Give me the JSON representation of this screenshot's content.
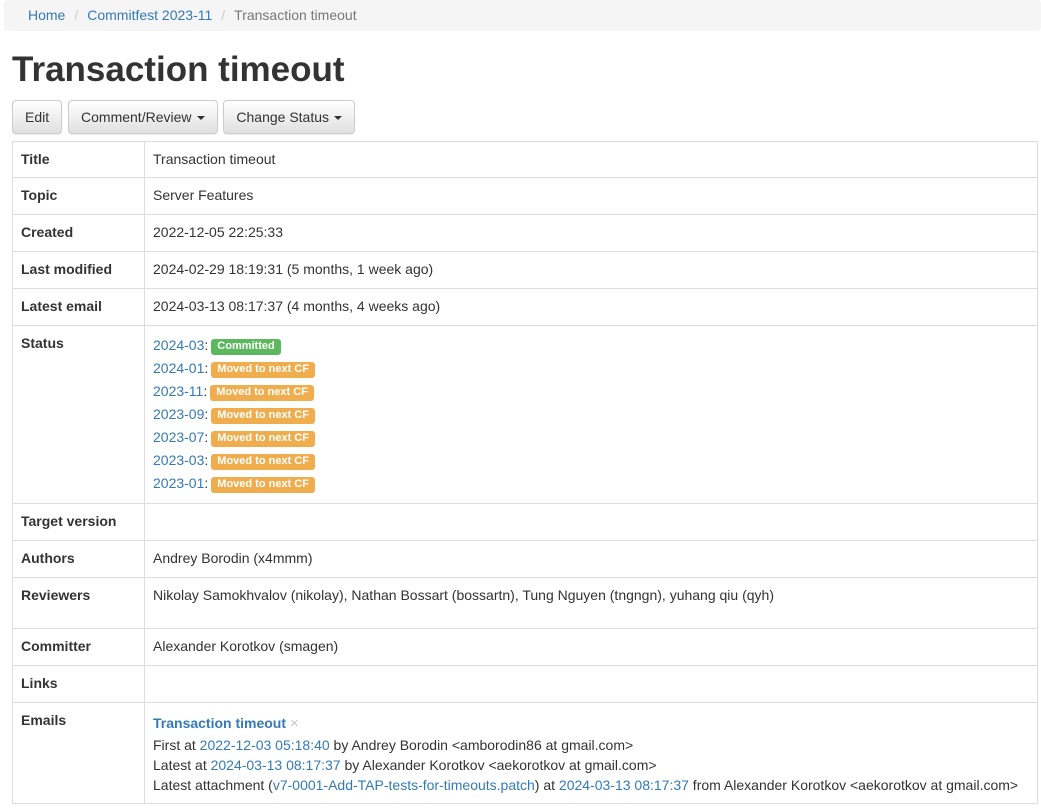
{
  "colors": {
    "success": "#5cb85c",
    "warning": "#f0ad4e",
    "link": "#337ab7",
    "breadcrumb_bg": "#f5f5f5"
  },
  "breadcrumb": {
    "separator": "/",
    "items": [
      {
        "label": "Home"
      },
      {
        "label": "Commitfest 2023-11"
      },
      {
        "label": "Transaction timeout"
      }
    ]
  },
  "page": {
    "title": "Transaction timeout"
  },
  "toolbar": {
    "edit": "Edit",
    "comment_review": "Comment/Review",
    "change_status": "Change Status"
  },
  "rows": {
    "title": {
      "label": "Title",
      "value": "Transaction timeout"
    },
    "topic": {
      "label": "Topic",
      "value": "Server Features"
    },
    "created": {
      "label": "Created",
      "value": "2022-12-05 22:25:33"
    },
    "last_modified": {
      "label": "Last modified",
      "value": "2024-02-29 18:19:31 (5 months, 1 week ago)"
    },
    "latest_email": {
      "label": "Latest email",
      "value": "2024-03-13 08:17:37 (4 months, 4 weeks ago)"
    },
    "status": {
      "label": "Status"
    },
    "target_version": {
      "label": "Target version",
      "value": ""
    },
    "authors": {
      "label": "Authors",
      "value": "Andrey Borodin (x4mmm)"
    },
    "reviewers": {
      "label": "Reviewers",
      "value": "Nikolay Samokhvalov (nikolay), Nathan Bossart (bossartn), Tung Nguyen (tngngn), yuhang qiu (qyh)"
    },
    "committer": {
      "label": "Committer",
      "value": "Alexander Korotkov (smagen)"
    },
    "links": {
      "label": "Links",
      "value": ""
    },
    "emails": {
      "label": "Emails"
    }
  },
  "status": {
    "colon": ":",
    "entries": [
      {
        "cf": "2024-03",
        "badge": "Committed",
        "type": "success"
      },
      {
        "cf": "2024-01",
        "badge": "Moved to next CF",
        "type": "warning"
      },
      {
        "cf": "2023-11",
        "badge": "Moved to next CF",
        "type": "warning"
      },
      {
        "cf": "2023-09",
        "badge": "Moved to next CF",
        "type": "warning"
      },
      {
        "cf": "2023-07",
        "badge": "Moved to next CF",
        "type": "warning"
      },
      {
        "cf": "2023-03",
        "badge": "Moved to next CF",
        "type": "warning"
      },
      {
        "cf": "2023-01",
        "badge": "Moved to next CF",
        "type": "warning"
      }
    ]
  },
  "emails": {
    "thread_title": "Transaction timeout",
    "dismiss_glyph": "×",
    "first": {
      "prefix": "First at ",
      "date": "2022-12-03 05:18:40",
      "suffix": " by Andrey Borodin <amborodin86 at gmail.com>"
    },
    "latest": {
      "prefix": "Latest at ",
      "date": "2024-03-13 08:17:37",
      "suffix": " by Alexander Korotkov <aekorotkov at gmail.com>"
    },
    "attachment": {
      "prefix": "Latest attachment (",
      "file": "v7-0001-Add-TAP-tests-for-timeouts.patch",
      "mid": ") at ",
      "date": "2024-03-13 08:17:37",
      "suffix": " from Alexander Korotkov <aekorotkov at gmail.com>"
    }
  }
}
